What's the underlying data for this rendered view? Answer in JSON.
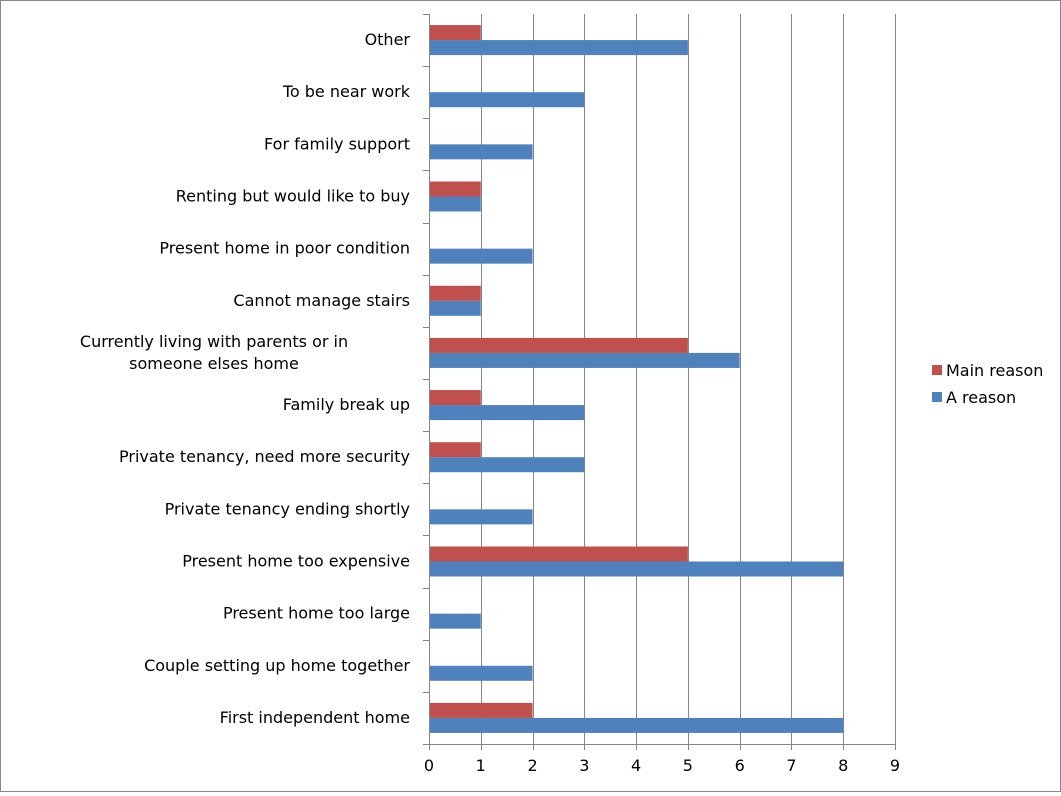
{
  "chart_data": {
    "type": "bar",
    "orientation": "horizontal",
    "title": "",
    "xlabel": "",
    "ylabel": "",
    "xlim": [
      0,
      9
    ],
    "x_ticks": [
      0,
      1,
      2,
      3,
      4,
      5,
      6,
      7,
      8,
      9
    ],
    "grid": "vertical",
    "legend_position": "right",
    "categories": [
      "First independent home",
      "Couple setting up home together",
      "Present home too large",
      "Present home too expensive",
      "Private tenancy ending shortly",
      "Private tenancy, need more security",
      "Family break up",
      "Currently living with parents or in someone elses home",
      "Cannot manage stairs",
      "Present home in poor condition",
      "Renting but would like to buy",
      "For family support",
      "To be near work",
      "Other"
    ],
    "series": [
      {
        "name": "A reason",
        "color": "#4f81bd",
        "values": [
          8,
          2,
          1,
          8,
          2,
          3,
          3,
          6,
          1,
          2,
          1,
          2,
          3,
          5
        ]
      },
      {
        "name": "Main reason",
        "color": "#c0504d",
        "values": [
          2,
          0,
          0,
          5,
          0,
          1,
          1,
          5,
          1,
          0,
          1,
          0,
          0,
          1
        ]
      }
    ],
    "legend_order": [
      "Main reason",
      "A reason"
    ]
  }
}
